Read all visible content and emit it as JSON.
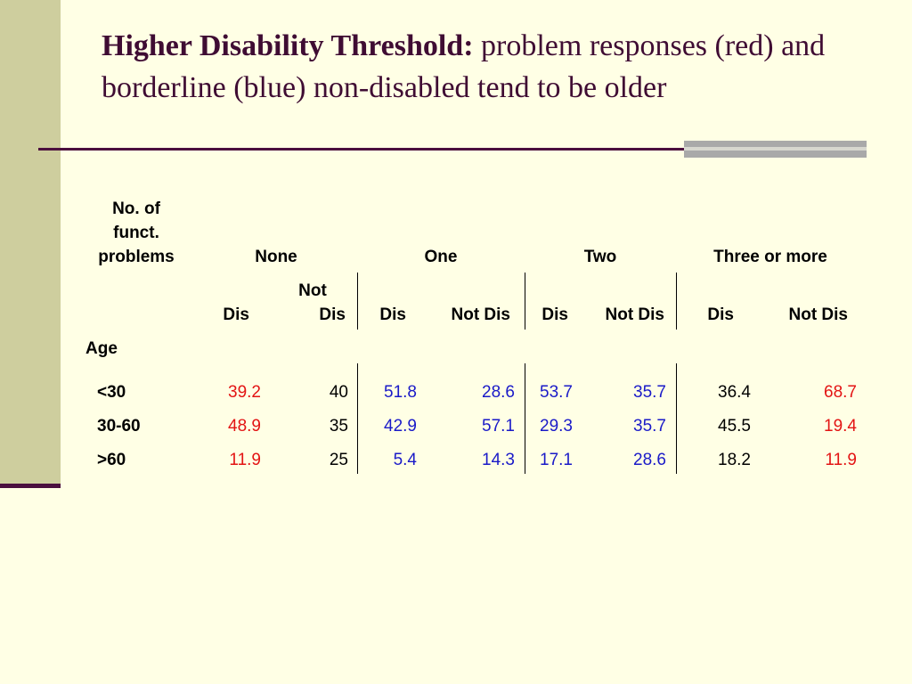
{
  "slide": {
    "title_bold": "Higher Disability Threshold:",
    "title_rest": " problem responses (red) and borderline (blue) non-disabled tend to be older"
  },
  "table": {
    "corner_header": [
      "No. of",
      "funct.",
      "problems"
    ],
    "groups": [
      "None",
      "One",
      "Two",
      "Three  or more"
    ],
    "subheaders": [
      {
        "line1": "",
        "line2": "Dis"
      },
      {
        "line1": "Not",
        "line2": "Dis"
      },
      {
        "line1": "",
        "line2": "Dis"
      },
      {
        "line1": "",
        "line2": "Not Dis"
      },
      {
        "line1": "",
        "line2": "Dis"
      },
      {
        "line1": "",
        "line2": "Not Dis"
      },
      {
        "line1": "",
        "line2": "Dis"
      },
      {
        "line1": "",
        "line2": "Not Dis"
      }
    ],
    "row_header_label": "Age",
    "rows": [
      {
        "label": "<30",
        "values": [
          "39.2",
          "40",
          "51.8",
          "28.6",
          "53.7",
          "35.7",
          "36.4",
          "68.7"
        ]
      },
      {
        "label": "30-60",
        "values": [
          "48.9",
          "35",
          "42.9",
          "57.1",
          "29.3",
          "35.7",
          "45.5",
          "19.4"
        ]
      },
      {
        "label": ">60",
        "values": [
          "11.9",
          "25",
          "5.4",
          "14.3",
          "17.1",
          "28.6",
          "18.2",
          "11.9"
        ]
      }
    ],
    "value_colors": [
      "red",
      "black",
      "blue",
      "blue",
      "blue",
      "blue",
      "black",
      "red"
    ],
    "colors": {
      "red": "#E31414",
      "blue": "#1A1AC8",
      "black": "#000000"
    }
  }
}
